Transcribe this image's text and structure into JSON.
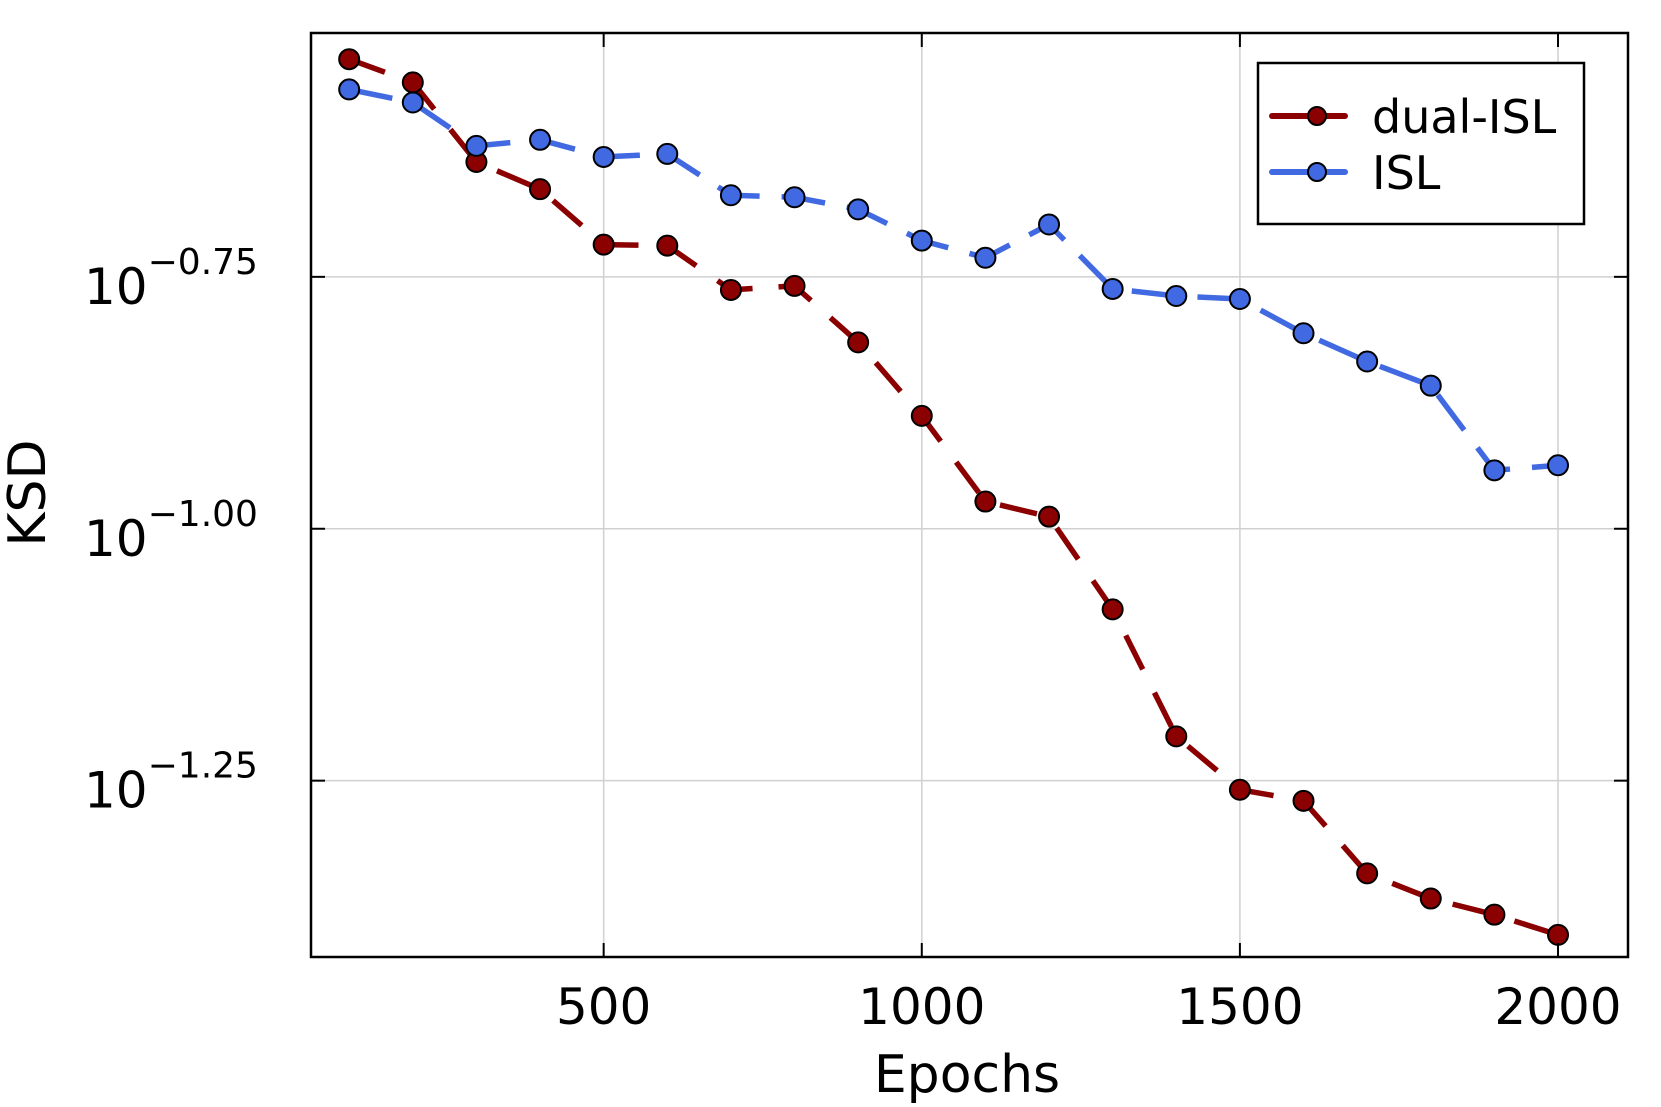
{
  "chart_data": {
    "type": "line",
    "xlabel": "Epochs",
    "ylabel": "KSD",
    "yscale": "log10",
    "xlim": [
      40,
      2110
    ],
    "ylim": [
      -1.425,
      -0.508
    ],
    "xticks": [
      500,
      1000,
      1500,
      2000
    ],
    "xtick_labels": [
      "500",
      "1000",
      "1500",
      "2000"
    ],
    "yticks": [
      -0.75,
      -1.0,
      -1.25
    ],
    "ytick_labels": [
      {
        "base": "10",
        "exp": "−0.75"
      },
      {
        "base": "10",
        "exp": "−1.00"
      },
      {
        "base": "10",
        "exp": "−1.25"
      }
    ],
    "grid": true,
    "legend": {
      "position": "top-right"
    },
    "x": [
      100,
      200,
      300,
      400,
      500,
      600,
      700,
      800,
      900,
      1000,
      1100,
      1200,
      1300,
      1400,
      1500,
      1600,
      1700,
      1800,
      1900,
      2000
    ],
    "series": [
      {
        "name": "dual-ISL",
        "color": "#8b0000",
        "style": "dashed",
        "log10_values": [
          -0.534,
          -0.557,
          -0.636,
          -0.663,
          -0.718,
          -0.719,
          -0.763,
          -0.759,
          -0.815,
          -0.888,
          -0.973,
          -0.988,
          -1.08,
          -1.206,
          -1.259,
          -1.27,
          -1.342,
          -1.367,
          -1.383,
          -1.403
        ]
      },
      {
        "name": "ISL",
        "color": "#4169e1",
        "style": "dashed",
        "log10_values": [
          -0.564,
          -0.577,
          -0.62,
          -0.614,
          -0.631,
          -0.628,
          -0.669,
          -0.671,
          -0.683,
          -0.714,
          -0.731,
          -0.698,
          -0.762,
          -0.769,
          -0.772,
          -0.806,
          -0.834,
          -0.858,
          -0.942,
          -0.937
        ]
      }
    ]
  }
}
